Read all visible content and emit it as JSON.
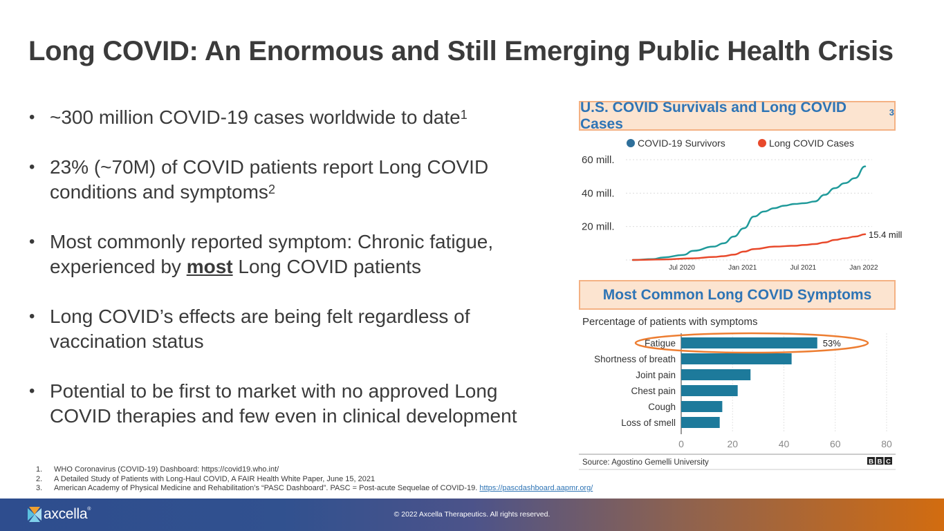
{
  "slide": {
    "title": "Long COVID: An Enormous and Still Emerging Public Health Crisis"
  },
  "bullets": [
    {
      "text": "~300 million COVID-19 cases worldwide to date",
      "sup": "1"
    },
    {
      "text": "23% (~70M) of COVID patients report Long COVID conditions and symptoms",
      "sup": "2"
    },
    {
      "pre": "Most commonly reported symptom: Chronic fatigue, experienced by ",
      "emph": "most",
      "post": " Long COVID patients"
    },
    {
      "text": "Long COVID’s effects are being felt regardless of vaccination status"
    },
    {
      "text": "Potential to be first to market with no approved Long COVID therapies and few even in clinical development"
    }
  ],
  "line_panel": {
    "title": "U.S. COVID Survivals and Long COVID Cases",
    "title_sup": "3"
  },
  "bar_panel": {
    "title": "Most Common Long COVID Symptoms"
  },
  "chart_data": [
    {
      "type": "line",
      "title": "U.S. COVID Survivals and Long COVID Cases",
      "xlabel": "",
      "ylabel": "",
      "x_ticks": [
        "Jul 2020",
        "Jan 2021",
        "Jul 2021",
        "Jan 2022"
      ],
      "y_ticks": [
        "20 mill.",
        "40 mill.",
        "60 mill."
      ],
      "y_tick_values": [
        20,
        40,
        60
      ],
      "ylim": [
        0,
        60
      ],
      "x_range_months": [
        "2020-02",
        "2022-01"
      ],
      "grid": true,
      "legend": "top",
      "series": [
        {
          "name": "COVID-19 Survivors",
          "color": "#1f9a9a",
          "legend_color": "#2e6f9a",
          "x_month_offset": [
            0,
            2,
            3,
            5,
            6,
            8,
            9,
            10,
            11,
            12,
            13,
            14,
            15,
            16,
            17,
            18,
            19,
            20,
            21,
            22,
            23
          ],
          "values": [
            0,
            0.5,
            1.5,
            3,
            5.5,
            8,
            10,
            14,
            19,
            26,
            29,
            31,
            32.5,
            33.5,
            34,
            35,
            39,
            43,
            46,
            49,
            56
          ]
        },
        {
          "name": "Long COVID Cases",
          "color": "#e8492b",
          "legend_color": "#e8492b",
          "x_month_offset": [
            0,
            3,
            6,
            8,
            9,
            10,
            11,
            12,
            14,
            16,
            17,
            18,
            19,
            20,
            21,
            22,
            23
          ],
          "values": [
            0,
            0.3,
            1,
            1.8,
            2.3,
            3.2,
            5,
            6.5,
            8,
            8.5,
            9,
            9.5,
            10.5,
            12,
            13,
            14,
            15.4
          ],
          "end_label": "15.4 mill."
        }
      ]
    },
    {
      "type": "bar",
      "orientation": "horizontal",
      "title": "Most Common Long COVID Symptoms",
      "subtitle": "Percentage of patients with symptoms",
      "categories": [
        "Fatigue",
        "Shortness of breath",
        "Joint pain",
        "Chest pain",
        "Cough",
        "Loss of smell"
      ],
      "values": [
        53,
        43,
        27,
        22,
        16,
        15
      ],
      "data_labels": [
        "53%",
        "",
        "",
        "",
        "",
        ""
      ],
      "highlight": "Fatigue",
      "bar_color": "#1d7a9b",
      "highlight_color": "#ed7d31",
      "x_ticks": [
        "0",
        "20",
        "40",
        "60",
        "80"
      ],
      "xlim": [
        0,
        80
      ],
      "grid": true,
      "source": "Source: Agostino Gemelli University",
      "brand": [
        "B",
        "B",
        "C"
      ]
    }
  ],
  "footnotes": [
    {
      "num": "1.",
      "text": "WHO Coronavirus (COVID-19) Dashboard: https://covid19.who.int/"
    },
    {
      "num": "2.",
      "text": "A Detailed Study of Patients with Long-Haul COVID, A FAIR Health White Paper, June 15, 2021"
    },
    {
      "num": "3.",
      "text": "American Academy of Physical Medicine and Rehabilitation’s “PASC Dashboard”. PASC = Post-acute Sequelae of COVID-19. ",
      "link": "https://pascdashboard.aapmr.org/"
    }
  ],
  "footer": {
    "logo": "axcella",
    "copyright": "© 2022 Axcella Therapeutics. All rights reserved."
  }
}
